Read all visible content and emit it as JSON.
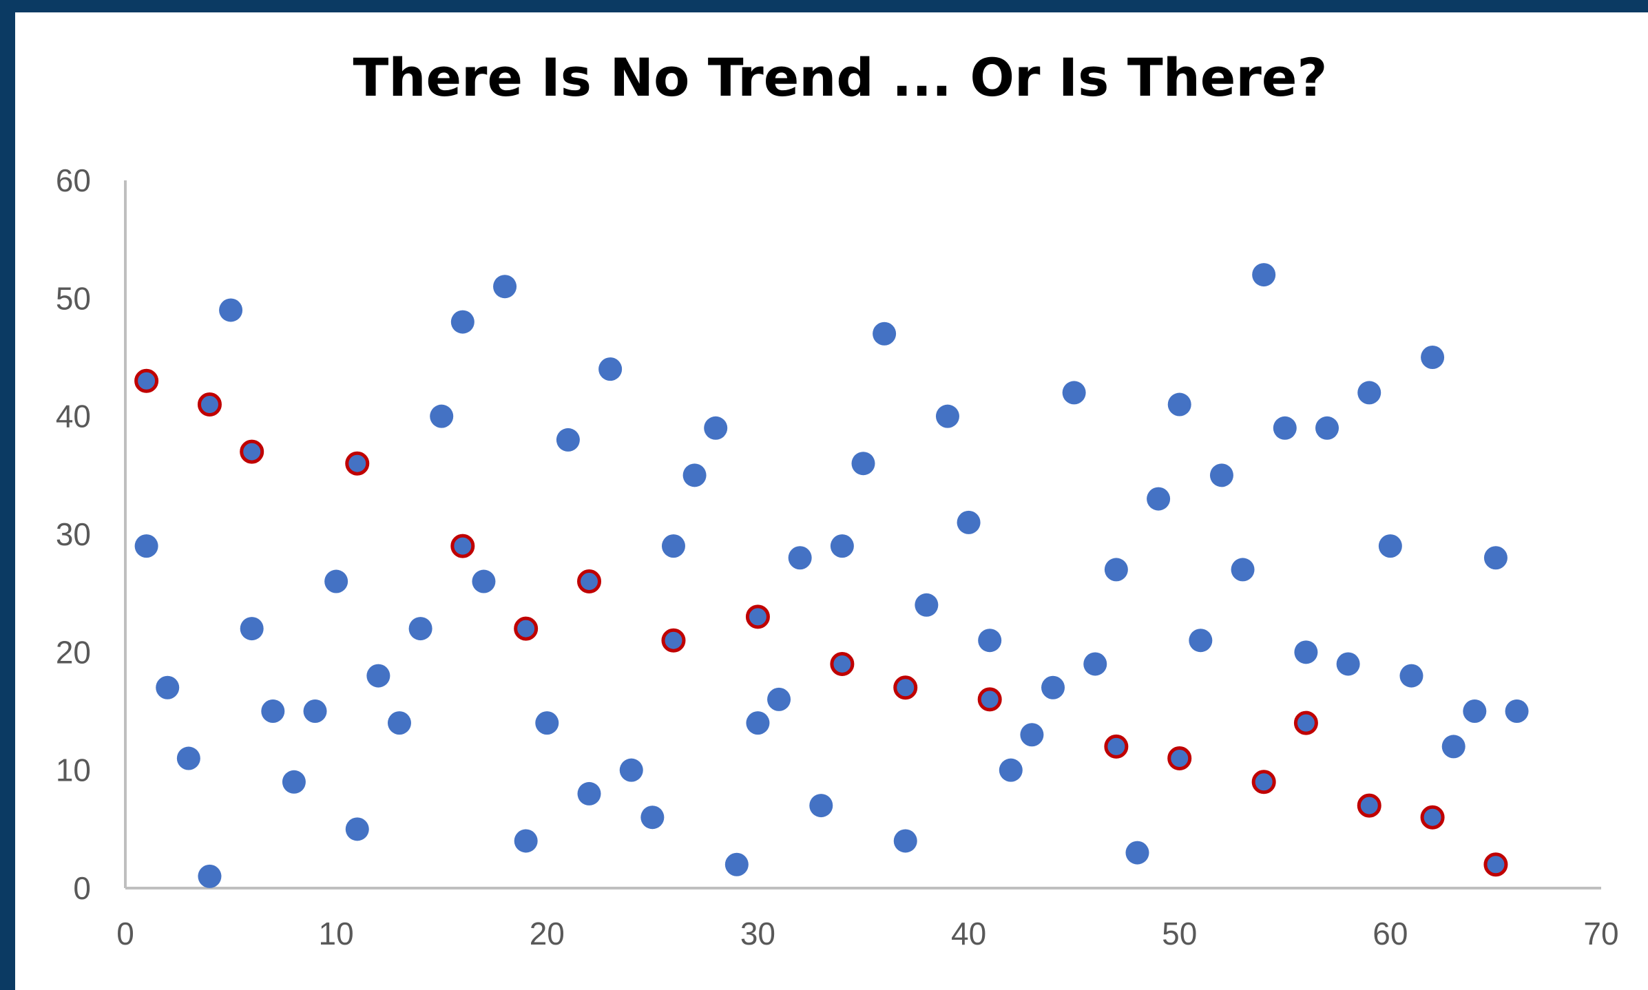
{
  "colors": {
    "frame": "#0b3a63",
    "background": "#ffffff",
    "axis": "#bfbfbf",
    "point_fill": "#4472c4",
    "highlight_stroke": "#c00000"
  },
  "chart_data": {
    "type": "scatter",
    "title": "There Is No Trend ... Or Is There?",
    "xlabel": "",
    "ylabel": "",
    "xlim": [
      0,
      70
    ],
    "ylim": [
      0,
      60
    ],
    "x_ticks": [
      0,
      10,
      20,
      30,
      40,
      50,
      60,
      70
    ],
    "y_ticks": [
      0,
      10,
      20,
      30,
      40,
      50,
      60
    ],
    "grid": false,
    "legend": "none",
    "series": [
      {
        "points": [
          [
            1,
            29
          ],
          [
            2,
            17
          ],
          [
            3,
            11
          ],
          [
            4,
            1
          ],
          [
            5,
            49
          ],
          [
            6,
            22
          ],
          [
            7,
            15
          ],
          [
            8,
            9
          ],
          [
            9,
            15
          ],
          [
            10,
            26
          ],
          [
            11,
            5
          ],
          [
            12,
            18
          ],
          [
            13,
            14
          ],
          [
            14,
            22
          ],
          [
            15,
            40
          ],
          [
            16,
            48
          ],
          [
            17,
            26
          ],
          [
            18,
            51
          ],
          [
            19,
            4
          ],
          [
            20,
            14
          ],
          [
            21,
            38
          ],
          [
            22,
            8
          ],
          [
            23,
            44
          ],
          [
            24,
            10
          ],
          [
            25,
            6
          ],
          [
            26,
            29
          ],
          [
            27,
            35
          ],
          [
            28,
            39
          ],
          [
            29,
            2
          ],
          [
            30,
            14
          ],
          [
            31,
            16
          ],
          [
            32,
            28
          ],
          [
            33,
            7
          ],
          [
            34,
            29
          ],
          [
            35,
            36
          ],
          [
            36,
            47
          ],
          [
            37,
            4
          ],
          [
            38,
            24
          ],
          [
            39,
            40
          ],
          [
            40,
            31
          ],
          [
            41,
            21
          ],
          [
            42,
            10
          ],
          [
            43,
            13
          ],
          [
            44,
            17
          ],
          [
            45,
            42
          ],
          [
            46,
            19
          ],
          [
            47,
            27
          ],
          [
            48,
            3
          ],
          [
            49,
            33
          ],
          [
            50,
            41
          ],
          [
            51,
            21
          ],
          [
            52,
            35
          ],
          [
            53,
            27
          ],
          [
            54,
            52
          ],
          [
            55,
            39
          ],
          [
            56,
            20
          ],
          [
            57,
            39
          ],
          [
            58,
            19
          ],
          [
            59,
            42
          ],
          [
            60,
            29
          ],
          [
            61,
            18
          ],
          [
            62,
            45
          ],
          [
            63,
            12
          ],
          [
            64,
            15
          ],
          [
            65,
            28
          ],
          [
            66,
            15
          ]
        ]
      },
      {
        "highlighted": true,
        "points": [
          [
            1,
            43
          ],
          [
            4,
            41
          ],
          [
            6,
            37
          ],
          [
            11,
            36
          ],
          [
            16,
            29
          ],
          [
            19,
            22
          ],
          [
            22,
            26
          ],
          [
            26,
            21
          ],
          [
            30,
            23
          ],
          [
            34,
            19
          ],
          [
            37,
            17
          ],
          [
            41,
            16
          ],
          [
            47,
            12
          ],
          [
            50,
            11
          ],
          [
            54,
            9
          ],
          [
            56,
            14
          ],
          [
            59,
            7
          ],
          [
            62,
            6
          ],
          [
            65,
            2
          ]
        ]
      }
    ]
  }
}
